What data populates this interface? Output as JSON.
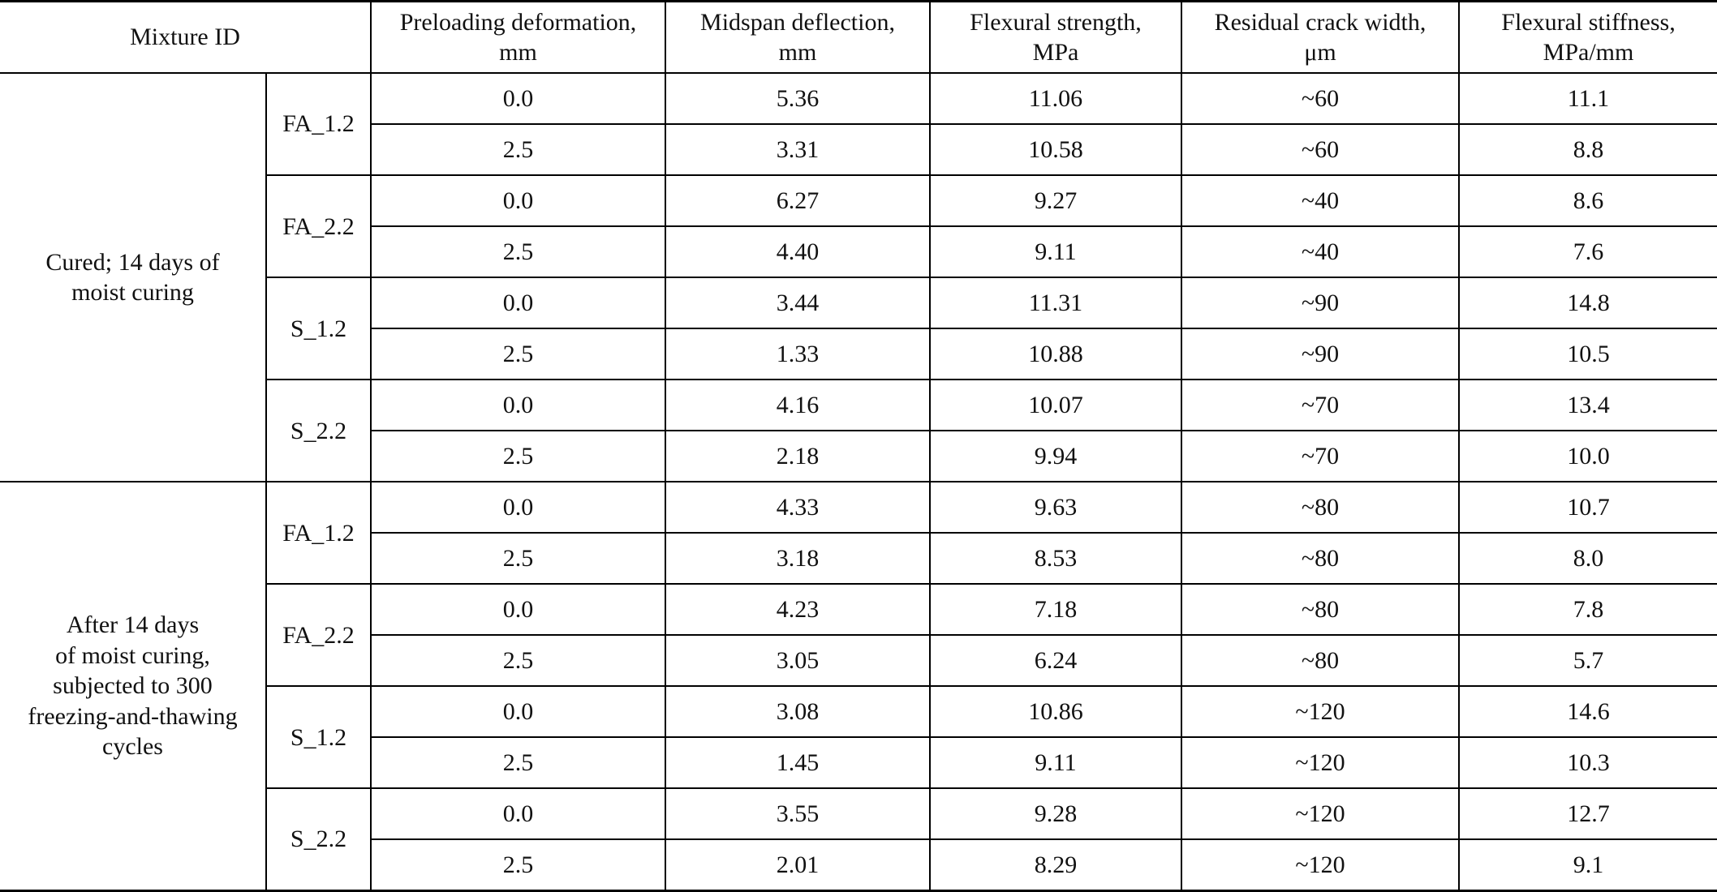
{
  "table": {
    "headers": {
      "mixture_id": "Mixture ID",
      "preloading": "Preloading deformation,\nmm",
      "midspan": "Midspan deflection,\nmm",
      "strength": "Flexural strength,\nMPa",
      "crack": "Residual crack width,\nμm",
      "stiffness": "Flexural stiffness,\nMPa/mm"
    },
    "groups": [
      {
        "label": "Cured; 14 days of\nmoist curing",
        "mixtures": [
          {
            "id": "FA_1.2",
            "rows": [
              {
                "preloading": "0.0",
                "midspan": "5.36",
                "strength": "11.06",
                "crack": "~60",
                "stiffness": "11.1"
              },
              {
                "preloading": "2.5",
                "midspan": "3.31",
                "strength": "10.58",
                "crack": "~60",
                "stiffness": "8.8"
              }
            ]
          },
          {
            "id": "FA_2.2",
            "rows": [
              {
                "preloading": "0.0",
                "midspan": "6.27",
                "strength": "9.27",
                "crack": "~40",
                "stiffness": "8.6"
              },
              {
                "preloading": "2.5",
                "midspan": "4.40",
                "strength": "9.11",
                "crack": "~40",
                "stiffness": "7.6"
              }
            ]
          },
          {
            "id": "S_1.2",
            "rows": [
              {
                "preloading": "0.0",
                "midspan": "3.44",
                "strength": "11.31",
                "crack": "~90",
                "stiffness": "14.8"
              },
              {
                "preloading": "2.5",
                "midspan": "1.33",
                "strength": "10.88",
                "crack": "~90",
                "stiffness": "10.5"
              }
            ]
          },
          {
            "id": "S_2.2",
            "rows": [
              {
                "preloading": "0.0",
                "midspan": "4.16",
                "strength": "10.07",
                "crack": "~70",
                "stiffness": "13.4"
              },
              {
                "preloading": "2.5",
                "midspan": "2.18",
                "strength": "9.94",
                "crack": "~70",
                "stiffness": "10.0"
              }
            ]
          }
        ]
      },
      {
        "label": "After 14 days\nof moist curing,\nsubjected to 300\nfreezing-and-thawing\ncycles",
        "mixtures": [
          {
            "id": "FA_1.2",
            "rows": [
              {
                "preloading": "0.0",
                "midspan": "4.33",
                "strength": "9.63",
                "crack": "~80",
                "stiffness": "10.7"
              },
              {
                "preloading": "2.5",
                "midspan": "3.18",
                "strength": "8.53",
                "crack": "~80",
                "stiffness": "8.0"
              }
            ]
          },
          {
            "id": "FA_2.2",
            "rows": [
              {
                "preloading": "0.0",
                "midspan": "4.23",
                "strength": "7.18",
                "crack": "~80",
                "stiffness": "7.8"
              },
              {
                "preloading": "2.5",
                "midspan": "3.05",
                "strength": "6.24",
                "crack": "~80",
                "stiffness": "5.7"
              }
            ]
          },
          {
            "id": "S_1.2",
            "rows": [
              {
                "preloading": "0.0",
                "midspan": "3.08",
                "strength": "10.86",
                "crack": "~120",
                "stiffness": "14.6"
              },
              {
                "preloading": "2.5",
                "midspan": "1.45",
                "strength": "9.11",
                "crack": "~120",
                "stiffness": "10.3"
              }
            ]
          },
          {
            "id": "S_2.2",
            "rows": [
              {
                "preloading": "0.0",
                "midspan": "3.55",
                "strength": "9.28",
                "crack": "~120",
                "stiffness": "12.7"
              },
              {
                "preloading": "2.5",
                "midspan": "2.01",
                "strength": "8.29",
                "crack": "~120",
                "stiffness": "9.1"
              }
            ]
          }
        ]
      }
    ]
  }
}
